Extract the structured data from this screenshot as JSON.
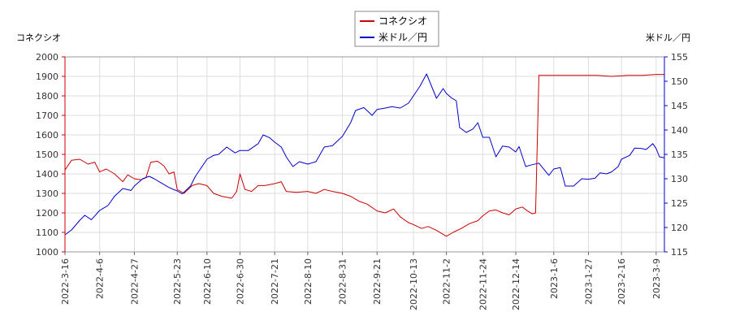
{
  "chart_data": {
    "type": "line",
    "legend": {
      "placement": "top-center",
      "items": [
        {
          "label": "コネクシオ",
          "color": "#cc0000"
        },
        {
          "label": "米ドル／円",
          "color": "#0000cc"
        }
      ]
    },
    "left_axis": {
      "title": "コネクシオ",
      "ylim": [
        1000,
        2000
      ],
      "ticks": [
        "1000",
        "1100",
        "1200",
        "1300",
        "1400",
        "1500",
        "1600",
        "1700",
        "1800",
        "1900",
        "2000"
      ]
    },
    "right_axis": {
      "title": "米ドル／円",
      "ylim": [
        115,
        155
      ],
      "ticks": [
        "115",
        "120",
        "125",
        "130",
        "135",
        "140",
        "145",
        "150",
        "155"
      ]
    },
    "x_axis": {
      "range": [
        "2022-3-16",
        "2023-3-14"
      ],
      "ticks": [
        "2022-3-16",
        "2022-4-6",
        "2022-4-27",
        "2022-5-23",
        "2022-6-10",
        "2022-6-30",
        "2022-7-21",
        "2022-8-10",
        "2022-8-31",
        "2022-9-21",
        "2022-10-13",
        "2022-11-2",
        "2022-11-24",
        "2022-12-14",
        "2023-1-6",
        "2023-1-27",
        "2023-2-16",
        "2023-3-9"
      ]
    },
    "grid": true,
    "series": [
      {
        "name": "コネクシオ",
        "axis": "left",
        "color": "#cc0000",
        "points": [
          [
            "2022-3-16",
            1420
          ],
          [
            "2022-3-20",
            1470
          ],
          [
            "2022-3-25",
            1475
          ],
          [
            "2022-3-30",
            1450
          ],
          [
            "2022-4-3",
            1460
          ],
          [
            "2022-4-6",
            1410
          ],
          [
            "2022-4-10",
            1425
          ],
          [
            "2022-4-15",
            1400
          ],
          [
            "2022-4-20",
            1360
          ],
          [
            "2022-4-23",
            1395
          ],
          [
            "2022-4-27",
            1375
          ],
          [
            "2022-5-1",
            1370
          ],
          [
            "2022-5-4",
            1380
          ],
          [
            "2022-5-7",
            1460
          ],
          [
            "2022-5-11",
            1465
          ],
          [
            "2022-5-15",
            1440
          ],
          [
            "2022-5-18",
            1400
          ],
          [
            "2022-5-21",
            1410
          ],
          [
            "2022-5-23",
            1320
          ],
          [
            "2022-5-27",
            1300
          ],
          [
            "2022-6-1",
            1340
          ],
          [
            "2022-6-5",
            1350
          ],
          [
            "2022-6-10",
            1340
          ],
          [
            "2022-6-14",
            1300
          ],
          [
            "2022-6-19",
            1285
          ],
          [
            "2022-6-25",
            1275
          ],
          [
            "2022-6-28",
            1310
          ],
          [
            "2022-6-30",
            1400
          ],
          [
            "2022-7-3",
            1320
          ],
          [
            "2022-7-7",
            1310
          ],
          [
            "2022-7-11",
            1340
          ],
          [
            "2022-7-15",
            1340
          ],
          [
            "2022-7-21",
            1350
          ],
          [
            "2022-7-25",
            1360
          ],
          [
            "2022-7-28",
            1310
          ],
          [
            "2022-8-3",
            1305
          ],
          [
            "2022-8-10",
            1310
          ],
          [
            "2022-8-15",
            1300
          ],
          [
            "2022-8-20",
            1320
          ],
          [
            "2022-8-25",
            1310
          ],
          [
            "2022-8-31",
            1300
          ],
          [
            "2022-9-5",
            1285
          ],
          [
            "2022-9-10",
            1260
          ],
          [
            "2022-9-15",
            1245
          ],
          [
            "2022-9-21",
            1210
          ],
          [
            "2022-9-26",
            1200
          ],
          [
            "2022-10-1",
            1220
          ],
          [
            "2022-10-5",
            1180
          ],
          [
            "2022-10-10",
            1150
          ],
          [
            "2022-10-13",
            1140
          ],
          [
            "2022-10-18",
            1120
          ],
          [
            "2022-10-22",
            1130
          ],
          [
            "2022-10-27",
            1110
          ],
          [
            "2022-11-2",
            1080
          ],
          [
            "2022-11-6",
            1100
          ],
          [
            "2022-11-11",
            1120
          ],
          [
            "2022-11-16",
            1145
          ],
          [
            "2022-11-21",
            1160
          ],
          [
            "2022-11-24",
            1185
          ],
          [
            "2022-11-28",
            1210
          ],
          [
            "2022-12-2",
            1215
          ],
          [
            "2022-12-6",
            1200
          ],
          [
            "2022-12-10",
            1190
          ],
          [
            "2022-12-14",
            1220
          ],
          [
            "2022-12-18",
            1230
          ],
          [
            "2022-12-21",
            1210
          ],
          [
            "2022-12-24",
            1195
          ],
          [
            "2022-12-26",
            1200
          ],
          [
            "2022-12-28",
            1905
          ],
          [
            "2023-1-6",
            1905
          ],
          [
            "2023-1-20",
            1905
          ],
          [
            "2023-2-1",
            1905
          ],
          [
            "2023-2-10",
            1900
          ],
          [
            "2023-2-20",
            1905
          ],
          [
            "2023-3-1",
            1905
          ],
          [
            "2023-3-9",
            1910
          ],
          [
            "2023-3-14",
            1910
          ]
        ]
      },
      {
        "name": "米ドル／円",
        "axis": "right",
        "color": "#0000cc",
        "points": [
          [
            "2022-3-16",
            118.5
          ],
          [
            "2022-3-20",
            119.5
          ],
          [
            "2022-3-25",
            121.5
          ],
          [
            "2022-3-28",
            122.5
          ],
          [
            "2022-4-1",
            121.6
          ],
          [
            "2022-4-6",
            123.5
          ],
          [
            "2022-4-11",
            124.5
          ],
          [
            "2022-4-15",
            126.4
          ],
          [
            "2022-4-20",
            128.0
          ],
          [
            "2022-4-25",
            127.6
          ],
          [
            "2022-4-27",
            128.5
          ],
          [
            "2022-5-2",
            130.0
          ],
          [
            "2022-5-6",
            130.5
          ],
          [
            "2022-5-9",
            130.0
          ],
          [
            "2022-5-13",
            129.2
          ],
          [
            "2022-5-18",
            128.2
          ],
          [
            "2022-5-23",
            127.5
          ],
          [
            "2022-5-26",
            126.9
          ],
          [
            "2022-5-31",
            128.5
          ],
          [
            "2022-6-3",
            130.5
          ],
          [
            "2022-6-7",
            132.5
          ],
          [
            "2022-6-10",
            134.0
          ],
          [
            "2022-6-14",
            134.8
          ],
          [
            "2022-6-17",
            135.0
          ],
          [
            "2022-6-22",
            136.5
          ],
          [
            "2022-6-27",
            135.3
          ],
          [
            "2022-6-30",
            135.8
          ],
          [
            "2022-7-5",
            135.8
          ],
          [
            "2022-7-11",
            137.2
          ],
          [
            "2022-7-14",
            139.0
          ],
          [
            "2022-7-18",
            138.4
          ],
          [
            "2022-7-21",
            137.5
          ],
          [
            "2022-7-25",
            136.5
          ],
          [
            "2022-7-28",
            134.5
          ],
          [
            "2022-8-1",
            132.5
          ],
          [
            "2022-8-5",
            133.5
          ],
          [
            "2022-8-10",
            133.0
          ],
          [
            "2022-8-15",
            133.5
          ],
          [
            "2022-8-20",
            136.5
          ],
          [
            "2022-8-25",
            136.8
          ],
          [
            "2022-8-31",
            138.7
          ],
          [
            "2022-9-5",
            141.5
          ],
          [
            "2022-9-8",
            144.0
          ],
          [
            "2022-9-13",
            144.6
          ],
          [
            "2022-9-18",
            143.0
          ],
          [
            "2022-9-21",
            144.2
          ],
          [
            "2022-9-26",
            144.5
          ],
          [
            "2022-9-30",
            144.8
          ],
          [
            "2022-10-5",
            144.5
          ],
          [
            "2022-10-10",
            145.5
          ],
          [
            "2022-10-13",
            147.0
          ],
          [
            "2022-10-17",
            149.0
          ],
          [
            "2022-10-21",
            151.5
          ],
          [
            "2022-10-24",
            149.0
          ],
          [
            "2022-10-27",
            146.5
          ],
          [
            "2022-10-31",
            148.5
          ],
          [
            "2022-11-2",
            147.5
          ],
          [
            "2022-11-5",
            146.6
          ],
          [
            "2022-11-8",
            146.0
          ],
          [
            "2022-11-10",
            140.5
          ],
          [
            "2022-11-14",
            139.5
          ],
          [
            "2022-11-18",
            140.2
          ],
          [
            "2022-11-21",
            141.5
          ],
          [
            "2022-11-24",
            138.5
          ],
          [
            "2022-11-28",
            138.5
          ],
          [
            "2022-12-2",
            134.5
          ],
          [
            "2022-12-6",
            136.7
          ],
          [
            "2022-12-10",
            136.5
          ],
          [
            "2022-12-14",
            135.5
          ],
          [
            "2022-12-16",
            136.6
          ],
          [
            "2022-12-20",
            132.5
          ],
          [
            "2022-12-23",
            132.8
          ],
          [
            "2022-12-28",
            133.2
          ],
          [
            "2023-1-3",
            130.7
          ],
          [
            "2023-1-6",
            132.0
          ],
          [
            "2023-1-10",
            132.3
          ],
          [
            "2023-1-13",
            128.5
          ],
          [
            "2023-1-18",
            128.5
          ],
          [
            "2023-1-23",
            130.0
          ],
          [
            "2023-1-27",
            129.9
          ],
          [
            "2023-1-31",
            130.1
          ],
          [
            "2023-2-3",
            131.2
          ],
          [
            "2023-2-7",
            131.0
          ],
          [
            "2023-2-10",
            131.4
          ],
          [
            "2023-2-14",
            132.5
          ],
          [
            "2023-2-16",
            134.0
          ],
          [
            "2023-2-21",
            134.8
          ],
          [
            "2023-2-24",
            136.3
          ],
          [
            "2023-2-28",
            136.2
          ],
          [
            "2023-3-3",
            136.0
          ],
          [
            "2023-3-7",
            137.2
          ],
          [
            "2023-3-9",
            136.2
          ],
          [
            "2023-3-11",
            134.5
          ],
          [
            "2023-3-14",
            134.3
          ]
        ]
      }
    ]
  }
}
